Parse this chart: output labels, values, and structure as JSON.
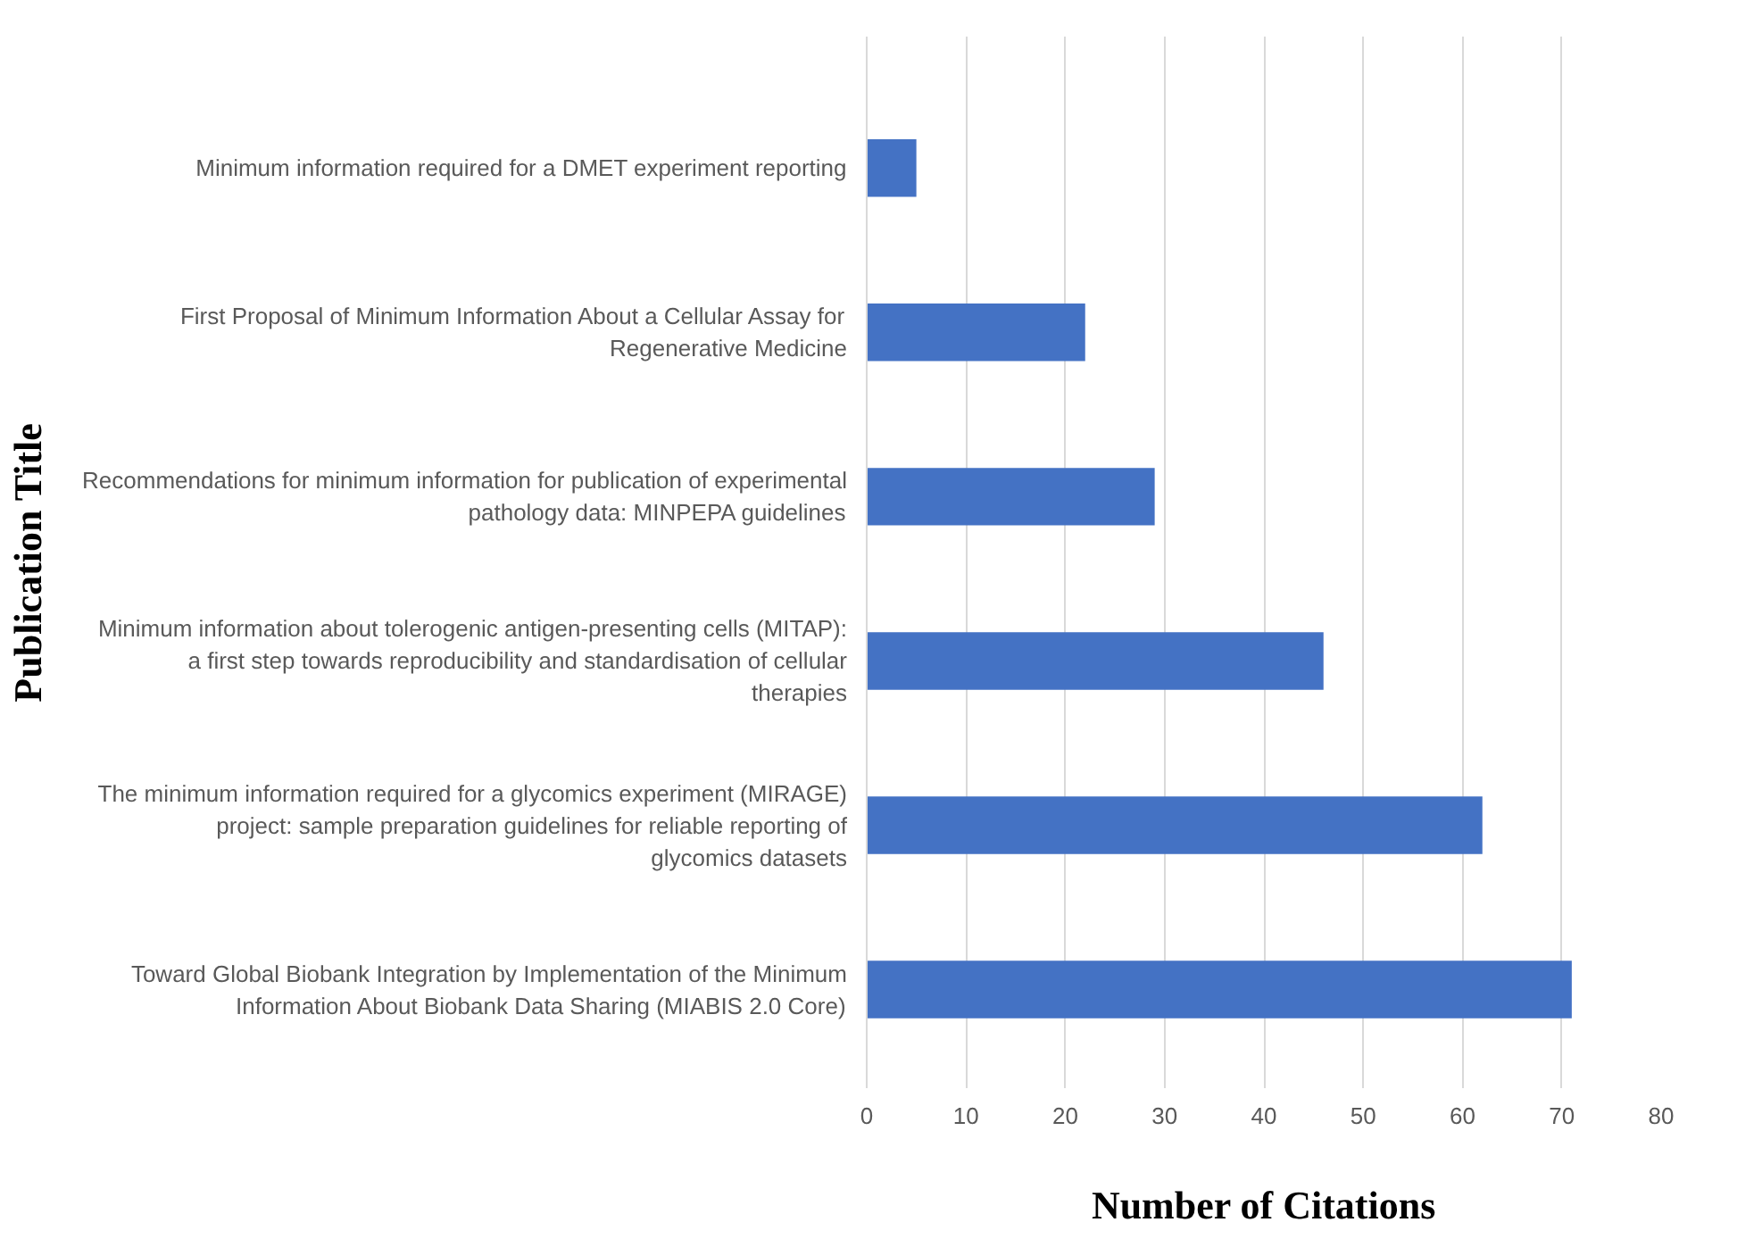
{
  "chart_data": {
    "type": "bar",
    "orientation": "horizontal",
    "xlabel": "Number of Citations",
    "ylabel": "Publication Title",
    "categories": [
      "Minimum information required for a DMET experiment reporting",
      "First Proposal of Minimum Information About a Cellular Assay for Regenerative Medicine",
      "Recommendations for minimum information for publication of experimental pathology data: MINPEPA guidelines",
      "Minimum information about tolerogenic antigen-presenting cells (MITAP): a first step towards reproducibility and standardisation of cellular therapies",
      "The minimum information required for a glycomics experiment (MIRAGE) project: sample preparation guidelines for reliable reporting of glycomics datasets",
      "Toward Global Biobank Integration by Implementation of the Minimum Information About Biobank Data Sharing (MIABIS 2.0 Core)"
    ],
    "values": [
      5,
      22,
      29,
      46,
      62,
      71
    ],
    "color": "#4472c4",
    "xlim": [
      0,
      80
    ],
    "xticks": [
      0,
      10,
      20,
      30,
      40,
      50,
      60,
      70,
      80
    ],
    "grid": "x"
  }
}
